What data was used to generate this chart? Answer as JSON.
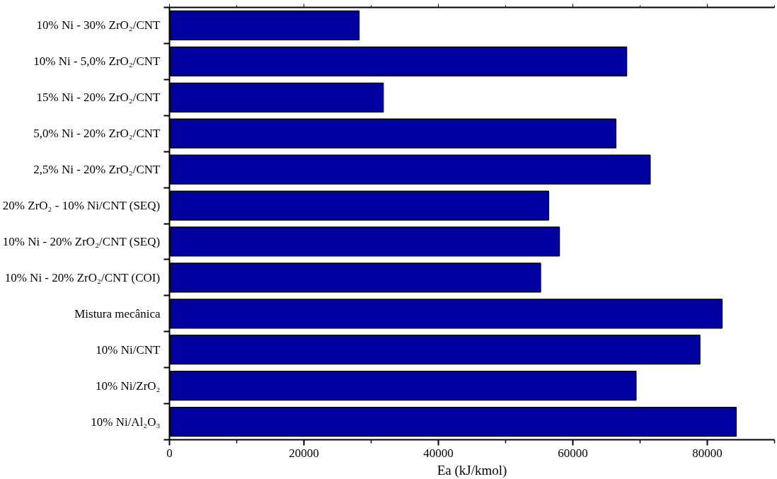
{
  "chart_data": {
    "type": "bar",
    "orientation": "horizontal",
    "xlabel": "Ea (kJ/kmol)",
    "categories": [
      "10% Ni - 30% ZrO₂/CNT",
      "10% Ni - 5,0% ZrO₂/CNT",
      "15% Ni - 20% ZrO₂/CNT",
      "5,0% Ni - 20% ZrO₂/CNT",
      "2,5% Ni - 20% ZrO₂/CNT",
      "20% ZrO₂ - 10% Ni/CNT (SEQ)",
      "10% Ni - 20% ZrO₂/CNT (SEQ)",
      "10% Ni - 20% ZrO₂/CNT (COI)",
      "Mistura mecânica",
      "10% Ni/CNT",
      "10% Ni/ZrO₂",
      "10% Ni/Al₂O₃"
    ],
    "values": [
      28200,
      68000,
      31800,
      66400,
      71500,
      56400,
      58000,
      55200,
      82200,
      78900,
      69400,
      84300
    ],
    "color": "#0000a0",
    "xlim": [
      0,
      90000
    ],
    "xticks": [
      0,
      {
        "value": 10000,
        "label": null
      },
      20000,
      {
        "value": 30000,
        "label": null
      },
      40000,
      {
        "value": 50000,
        "label": null
      },
      60000,
      {
        "value": 70000,
        "label": null
      },
      80000,
      {
        "value": 90000,
        "label": null
      }
    ],
    "grid": false
  }
}
